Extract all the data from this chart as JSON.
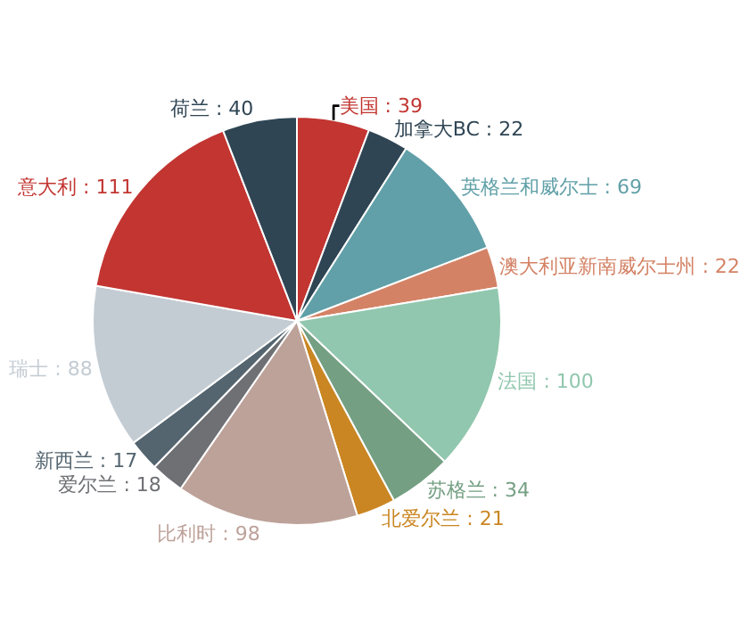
{
  "chart_data": {
    "type": "pie",
    "categories": [
      "美国",
      "加拿大BC",
      "英格兰和威尔士",
      "澳大利亚新南威尔士州",
      "法国",
      "苏格兰",
      "北爱尔兰",
      "比利时",
      "爱尔兰",
      "新西兰",
      "瑞士",
      "意大利",
      "荷兰"
    ],
    "values": [
      39,
      22,
      69,
      22,
      100,
      34,
      21,
      98,
      18,
      17,
      88,
      111,
      40
    ],
    "colors": [
      "#c23531",
      "#2f4554",
      "#61a0a8",
      "#d48265",
      "#91c7ae",
      "#749f83",
      "#ca8622",
      "#bda29a",
      "#6e7074",
      "#546570",
      "#c4ccd3",
      "#c23531",
      "#2f4554"
    ],
    "value_labels": [
      ": 39",
      ": 22",
      ": 69",
      ": 22",
      ": 100",
      ": 34",
      ": 21",
      ": 98",
      ": 18",
      ": 17",
      ": 88",
      ": 111",
      ": 40"
    ],
    "legend": false
  }
}
